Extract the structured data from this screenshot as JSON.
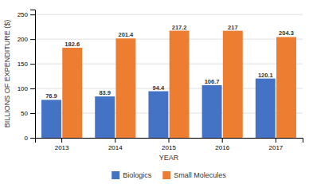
{
  "chart_data": {
    "type": "bar",
    "categories": [
      "2013",
      "2014",
      "2015",
      "2016",
      "2017"
    ],
    "series": [
      {
        "name": "Biologics",
        "color": "#4472C4",
        "values": [
          76.9,
          83.9,
          94.4,
          106.7,
          120.1
        ]
      },
      {
        "name": "Small Molecules",
        "color": "#ED7D31",
        "values": [
          182.6,
          201.4,
          217.2,
          217.0,
          204.3
        ]
      }
    ],
    "xlabel": "YEAR",
    "ylabel": "BILLIONS OF EXPENDITURE ($)",
    "ylim": [
      0,
      260
    ],
    "yticks": [
      0,
      50,
      100,
      150,
      200,
      250
    ],
    "grid": true,
    "legend": "bottom",
    "data_labels": true
  }
}
